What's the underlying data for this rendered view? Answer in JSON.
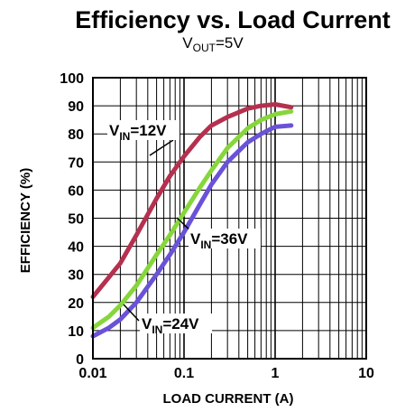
{
  "chart_data": {
    "type": "line",
    "title": "Efficiency vs. Load Current",
    "subtitle": {
      "main": "V",
      "sub": "OUT",
      "rest": "=5V"
    },
    "xlabel": "LOAD CURRENT (A)",
    "ylabel": "EFFICIENCY (%)",
    "xscale": "log",
    "xlim": [
      0.01,
      10
    ],
    "ylim": [
      0,
      100
    ],
    "grid": true,
    "x_ticks": [
      "0.01",
      "0.1",
      "1",
      "10"
    ],
    "y_ticks": [
      "0",
      "10",
      "20",
      "30",
      "40",
      "50",
      "60",
      "70",
      "80",
      "90",
      "100"
    ],
    "series": [
      {
        "name": "VIN=12V",
        "label": {
          "main": "V",
          "sub": "IN",
          "rest": "=12V"
        },
        "color": "#b5304f",
        "x": [
          0.01,
          0.015,
          0.02,
          0.03,
          0.05,
          0.07,
          0.1,
          0.15,
          0.2,
          0.3,
          0.5,
          0.7,
          1.0,
          1.5
        ],
        "y": [
          22,
          29,
          34,
          44,
          57,
          65,
          72,
          79,
          83,
          86,
          89,
          90,
          90.5,
          89.5
        ]
      },
      {
        "name": "VIN=36V",
        "label": {
          "main": "V",
          "sub": "IN",
          "rest": "=36V"
        },
        "color": "#86d63c",
        "x": [
          0.01,
          0.015,
          0.02,
          0.03,
          0.05,
          0.07,
          0.1,
          0.15,
          0.2,
          0.3,
          0.5,
          0.7,
          1.0,
          1.5
        ],
        "y": [
          11,
          15,
          19,
          26,
          37,
          44,
          52,
          61,
          67,
          75,
          82,
          85,
          87,
          88
        ]
      },
      {
        "name": "VIN=24V",
        "label": {
          "main": "V",
          "sub": "IN",
          "rest": "=24V"
        },
        "color": "#6a52d8",
        "x": [
          0.01,
          0.015,
          0.02,
          0.03,
          0.05,
          0.07,
          0.1,
          0.15,
          0.2,
          0.3,
          0.5,
          0.7,
          1.0,
          1.5
        ],
        "y": [
          8,
          11,
          14,
          20,
          30,
          37,
          45,
          55,
          62,
          70,
          77,
          80,
          82.5,
          83
        ]
      }
    ]
  }
}
